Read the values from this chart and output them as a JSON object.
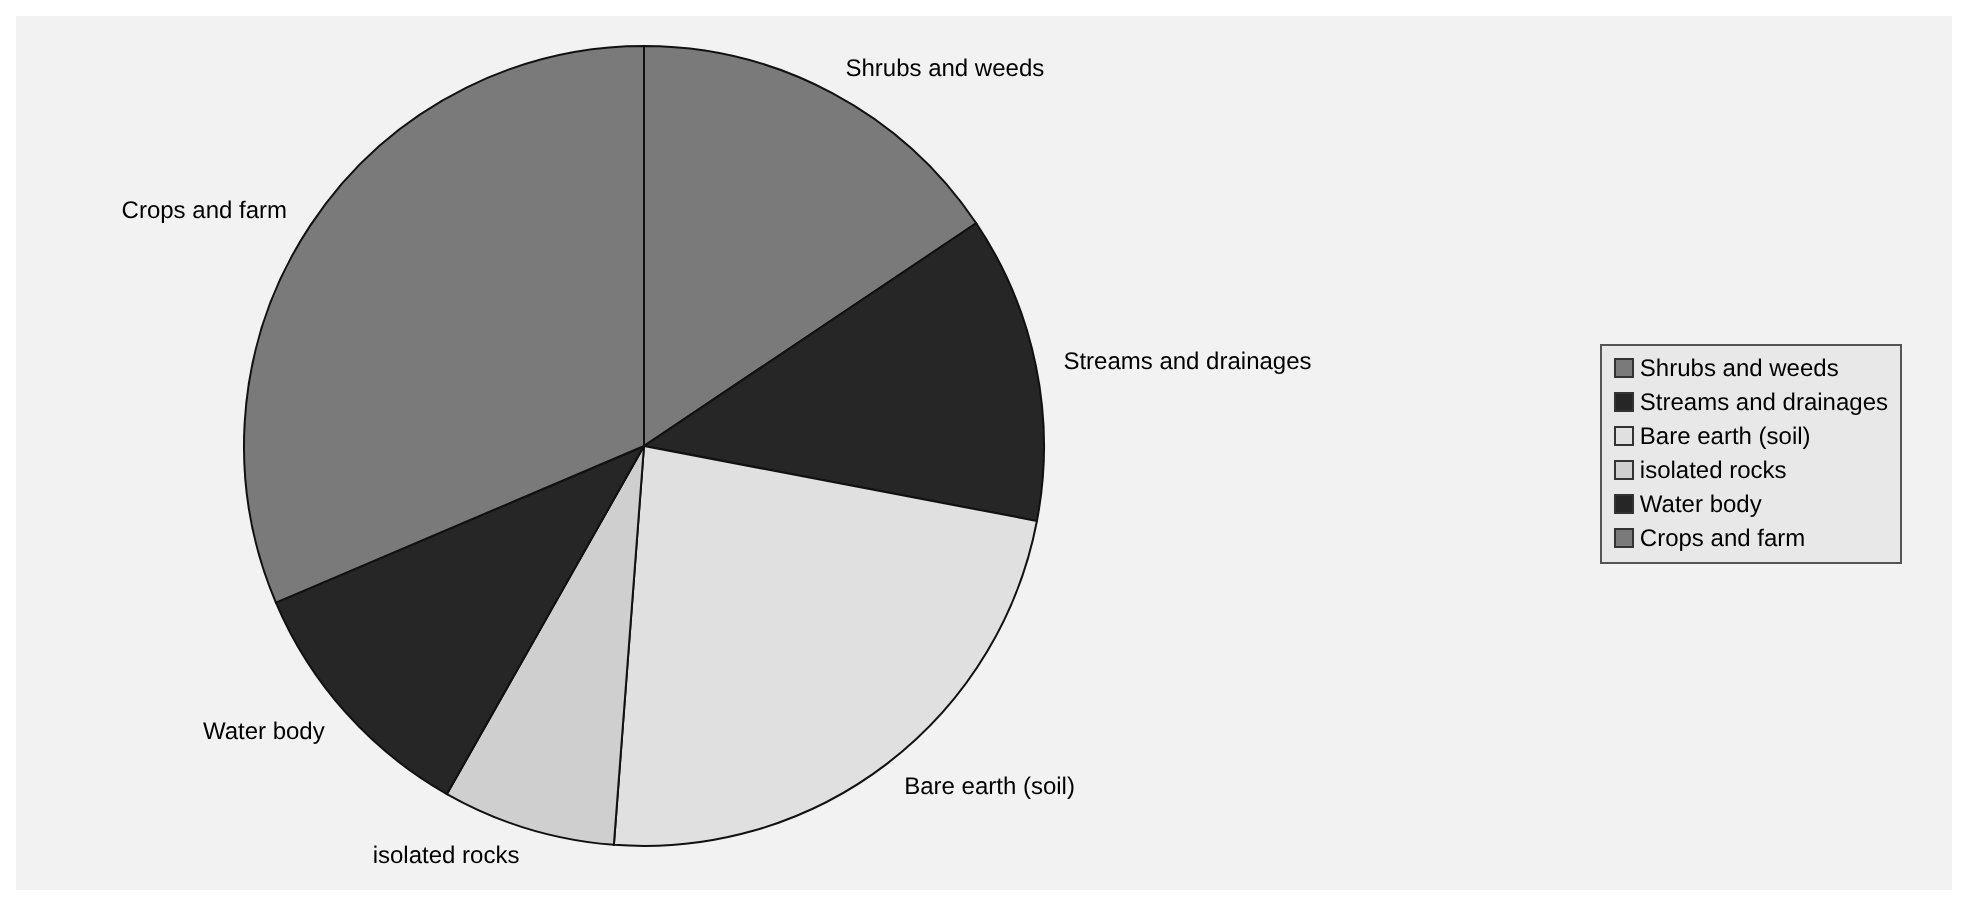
{
  "chart_data": {
    "type": "pie",
    "categories": [
      "Shrubs and weeds",
      "Streams and drainages",
      "Bare earth (soil)",
      "isolated rocks",
      "Water body",
      "Crops and farm"
    ],
    "values": [
      15.6,
      12.4,
      23.2,
      7.0,
      10.4,
      31.4
    ],
    "colors": [
      "#7a7a7a",
      "#262626",
      "#e0e0e0",
      "#cfcfcf",
      "#262626",
      "#7a7a7a"
    ],
    "legend": "right"
  }
}
